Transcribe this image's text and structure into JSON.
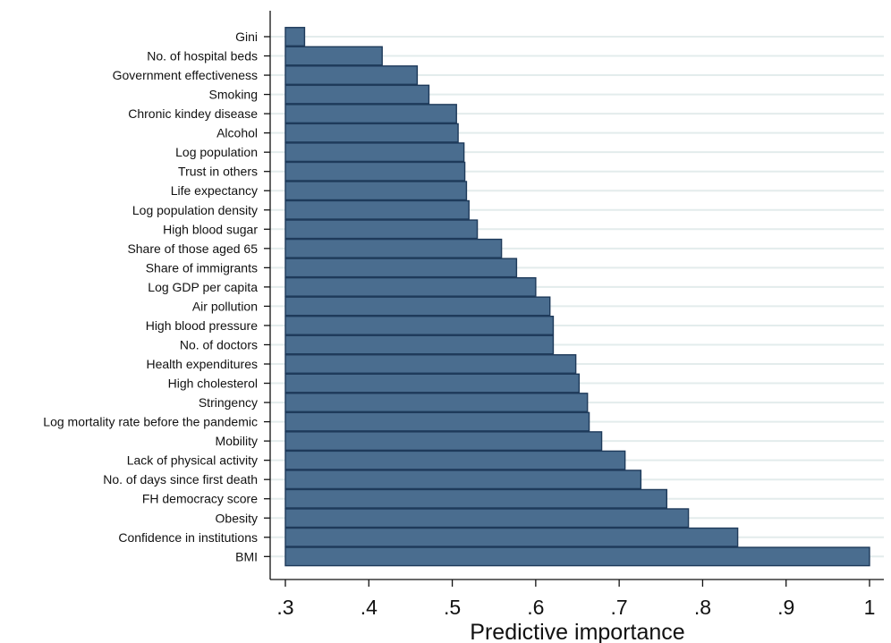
{
  "chart_data": {
    "type": "bar",
    "orientation": "horizontal",
    "categories": [
      "Gini",
      "No. of hospital beds",
      "Government effectiveness",
      "Smoking",
      "Chronic kindey disease",
      "Alcohol",
      "Log population",
      "Trust in others",
      "Life expectancy",
      "Log population density",
      "High blood sugar",
      "Share of those aged 65",
      "Share of immigrants",
      "Log GDP per capita",
      "Air pollution",
      "High blood pressure",
      "No. of doctors",
      "Health expenditures",
      "High cholesterol",
      "Stringency",
      "Log mortality rate before the pandemic",
      "Mobility",
      "Lack of physical activity",
      "No. of days since first death",
      "FH democracy score",
      "Obesity",
      "Confidence in institutions",
      "BMI"
    ],
    "values": [
      0.323,
      0.416,
      0.458,
      0.472,
      0.505,
      0.507,
      0.514,
      0.515,
      0.517,
      0.52,
      0.53,
      0.559,
      0.577,
      0.6,
      0.617,
      0.621,
      0.621,
      0.648,
      0.652,
      0.662,
      0.664,
      0.679,
      0.707,
      0.726,
      0.757,
      0.783,
      0.842,
      1.0
    ],
    "xlabel": "Predictive importance",
    "ylabel": "",
    "xlim": [
      0.3,
      1.0
    ],
    "xticks": [
      ".3",
      ".4",
      ".5",
      ".6",
      ".7",
      ".8",
      ".9",
      "1"
    ],
    "xtick_values": [
      0.3,
      0.4,
      0.5,
      0.6,
      0.7,
      0.8,
      0.9,
      1.0
    ],
    "grid": true,
    "legend": "none",
    "colors": {
      "bar_fill": "#4a6d8f",
      "bar_stroke": "#1e3a5a",
      "grid": "#e3ecec",
      "axis": "#111111"
    }
  }
}
